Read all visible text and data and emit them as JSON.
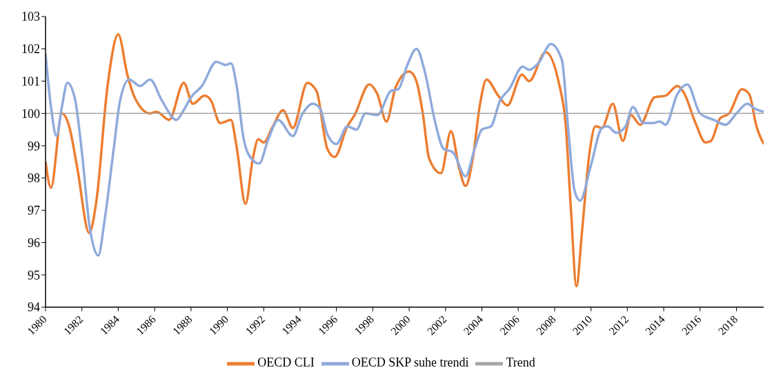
{
  "chart_data": {
    "type": "line",
    "xlim": [
      1980,
      2019.5
    ],
    "xticks": [
      1980,
      1982,
      1984,
      1986,
      1988,
      1990,
      1992,
      1994,
      1996,
      1998,
      2000,
      2002,
      2004,
      2006,
      2008,
      2010,
      2012,
      2014,
      2016,
      2018
    ],
    "ylim": [
      94,
      103
    ],
    "yticks": [
      94,
      95,
      96,
      97,
      98,
      99,
      100,
      101,
      102,
      103
    ],
    "legend": "bottom",
    "marker": "none",
    "line_style": "solid",
    "series": [
      {
        "name": "OECD CLI",
        "color": "#ed7d31",
        "x": [
          1980.0,
          1980.3,
          1980.9,
          1981.3,
          1981.75,
          1982.4,
          1982.8,
          1983.4,
          1984.0,
          1984.5,
          1984.9,
          1985.75,
          1986.1,
          1986.8,
          1987.6,
          1988.1,
          1988.75,
          1989.1,
          1989.6,
          1990.2,
          1990.5,
          1991.0,
          1991.4,
          1991.7,
          1992.0,
          1992.5,
          1993.06,
          1993.6,
          1994.4,
          1994.9,
          1995.5,
          1995.9,
          1996.6,
          1997.0,
          1997.8,
          1998.25,
          1998.75,
          1999.25,
          2000.0,
          2000.4,
          2000.75,
          2001.1,
          2001.75,
          2002.3,
          2002.75,
          2003.1,
          2003.5,
          2003.9,
          2004.25,
          2004.9,
          2005.4,
          2006.2,
          2006.6,
          2007.5,
          2008.25,
          2008.6,
          2008.9,
          2009.2,
          2009.5,
          2009.9,
          2010.25,
          2010.6,
          2011.2,
          2011.75,
          2012.2,
          2012.7,
          2013.5,
          2014.1,
          2014.75,
          2015.1,
          2015.75,
          2016.3,
          2016.6,
          2017.1,
          2017.6,
          2018.3,
          2018.7,
          2019.1,
          2019.5
        ],
        "values": [
          98.5,
          97.7,
          100.0,
          99.6,
          98.3,
          96.3,
          97.3,
          100.8,
          102.45,
          101.2,
          100.5,
          100.0,
          100.05,
          99.8,
          100.95,
          100.3,
          100.55,
          100.4,
          99.7,
          99.8,
          99.0,
          97.2,
          98.6,
          99.2,
          99.1,
          99.6,
          100.1,
          99.55,
          100.95,
          100.7,
          98.9,
          98.65,
          99.6,
          99.95,
          100.9,
          100.6,
          99.75,
          100.8,
          101.3,
          101.0,
          100.0,
          98.6,
          98.15,
          99.45,
          98.3,
          97.75,
          98.6,
          100.3,
          101.05,
          100.55,
          100.25,
          101.2,
          101.0,
          101.9,
          100.9,
          99.7,
          97.0,
          94.65,
          96.3,
          98.7,
          99.6,
          99.55,
          100.3,
          99.15,
          99.95,
          99.65,
          100.5,
          100.55,
          100.85,
          100.65,
          99.7,
          99.1,
          99.15,
          99.85,
          100.0,
          100.75,
          100.6,
          99.6,
          99.05
        ]
      },
      {
        "name": "OECD SKP suhe trendi",
        "color": "#8faadc",
        "x": [
          1980.0,
          1980.3,
          1980.6,
          1980.9,
          1981.2,
          1981.6,
          1982.0,
          1982.4,
          1982.9,
          1983.25,
          1983.75,
          1984.1,
          1984.6,
          1985.2,
          1985.75,
          1986.4,
          1987.2,
          1987.6,
          1988.0,
          1988.6,
          1989.4,
          1989.9,
          1990.2,
          1990.5,
          1990.9,
          1991.4,
          1991.75,
          1992.25,
          1992.8,
          1993.6,
          1994.1,
          1994.7,
          1995.1,
          1995.5,
          1996.0,
          1996.6,
          1997.1,
          1997.6,
          1998.25,
          1999.0,
          1999.4,
          1999.9,
          2000.4,
          2000.9,
          2001.4,
          2001.9,
          2002.4,
          2003.1,
          2003.6,
          2004.0,
          2004.5,
          2005.0,
          2005.5,
          2006.25,
          2006.6,
          2007.1,
          2007.8,
          2008.4,
          2008.75,
          2009.1,
          2009.4,
          2010.0,
          2010.6,
          2010.9,
          2011.4,
          2011.9,
          2012.3,
          2012.9,
          2013.4,
          2013.8,
          2014.1,
          2014.75,
          2015.3,
          2016.0,
          2016.75,
          2017.4,
          2018.0,
          2018.6,
          2019.0,
          2019.5
        ],
        "values": [
          101.85,
          100.2,
          99.3,
          100.2,
          100.95,
          100.5,
          98.8,
          96.6,
          95.6,
          96.7,
          98.9,
          100.4,
          101.05,
          100.85,
          101.05,
          100.4,
          99.8,
          100.1,
          100.5,
          100.85,
          101.6,
          101.5,
          101.55,
          100.9,
          99.2,
          98.55,
          98.45,
          99.2,
          99.8,
          99.3,
          99.95,
          100.3,
          100.15,
          99.35,
          99.05,
          99.6,
          99.5,
          100.0,
          99.95,
          100.7,
          100.75,
          101.5,
          102.0,
          101.2,
          99.8,
          98.9,
          98.8,
          98.05,
          98.9,
          99.5,
          99.6,
          100.4,
          100.75,
          101.45,
          101.35,
          101.55,
          102.15,
          101.65,
          99.5,
          97.6,
          97.3,
          98.4,
          99.55,
          99.6,
          99.4,
          99.6,
          100.2,
          99.7,
          99.7,
          99.75,
          99.65,
          100.6,
          100.9,
          100.0,
          99.8,
          99.65,
          100.0,
          100.3,
          100.15,
          100.05
        ]
      },
      {
        "name": "Trend",
        "color": "#a5a5a5",
        "x": [
          1980,
          2019.5
        ],
        "values": [
          100,
          100
        ]
      }
    ]
  }
}
